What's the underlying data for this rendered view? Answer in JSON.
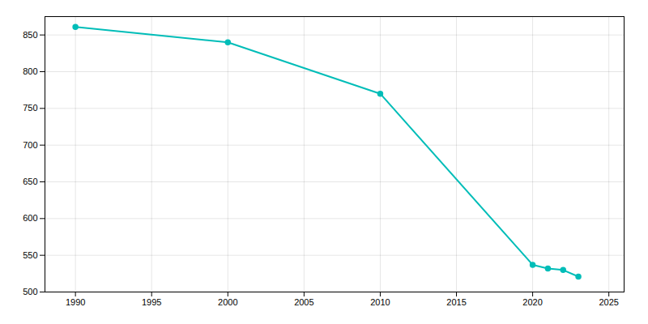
{
  "chart_data": {
    "type": "line",
    "x": [
      1990,
      2000,
      2010,
      2020,
      2021,
      2022,
      2023
    ],
    "values": [
      861,
      840,
      770,
      537,
      532,
      530,
      521
    ],
    "color": "#00bdb8",
    "marker": "circle",
    "xlim": [
      1988,
      2026
    ],
    "ylim": [
      500,
      875
    ],
    "xticks": [
      1990,
      1995,
      2000,
      2005,
      2010,
      2015,
      2020,
      2025
    ],
    "yticks": [
      500,
      550,
      600,
      650,
      700,
      750,
      800,
      850
    ],
    "grid": true
  }
}
